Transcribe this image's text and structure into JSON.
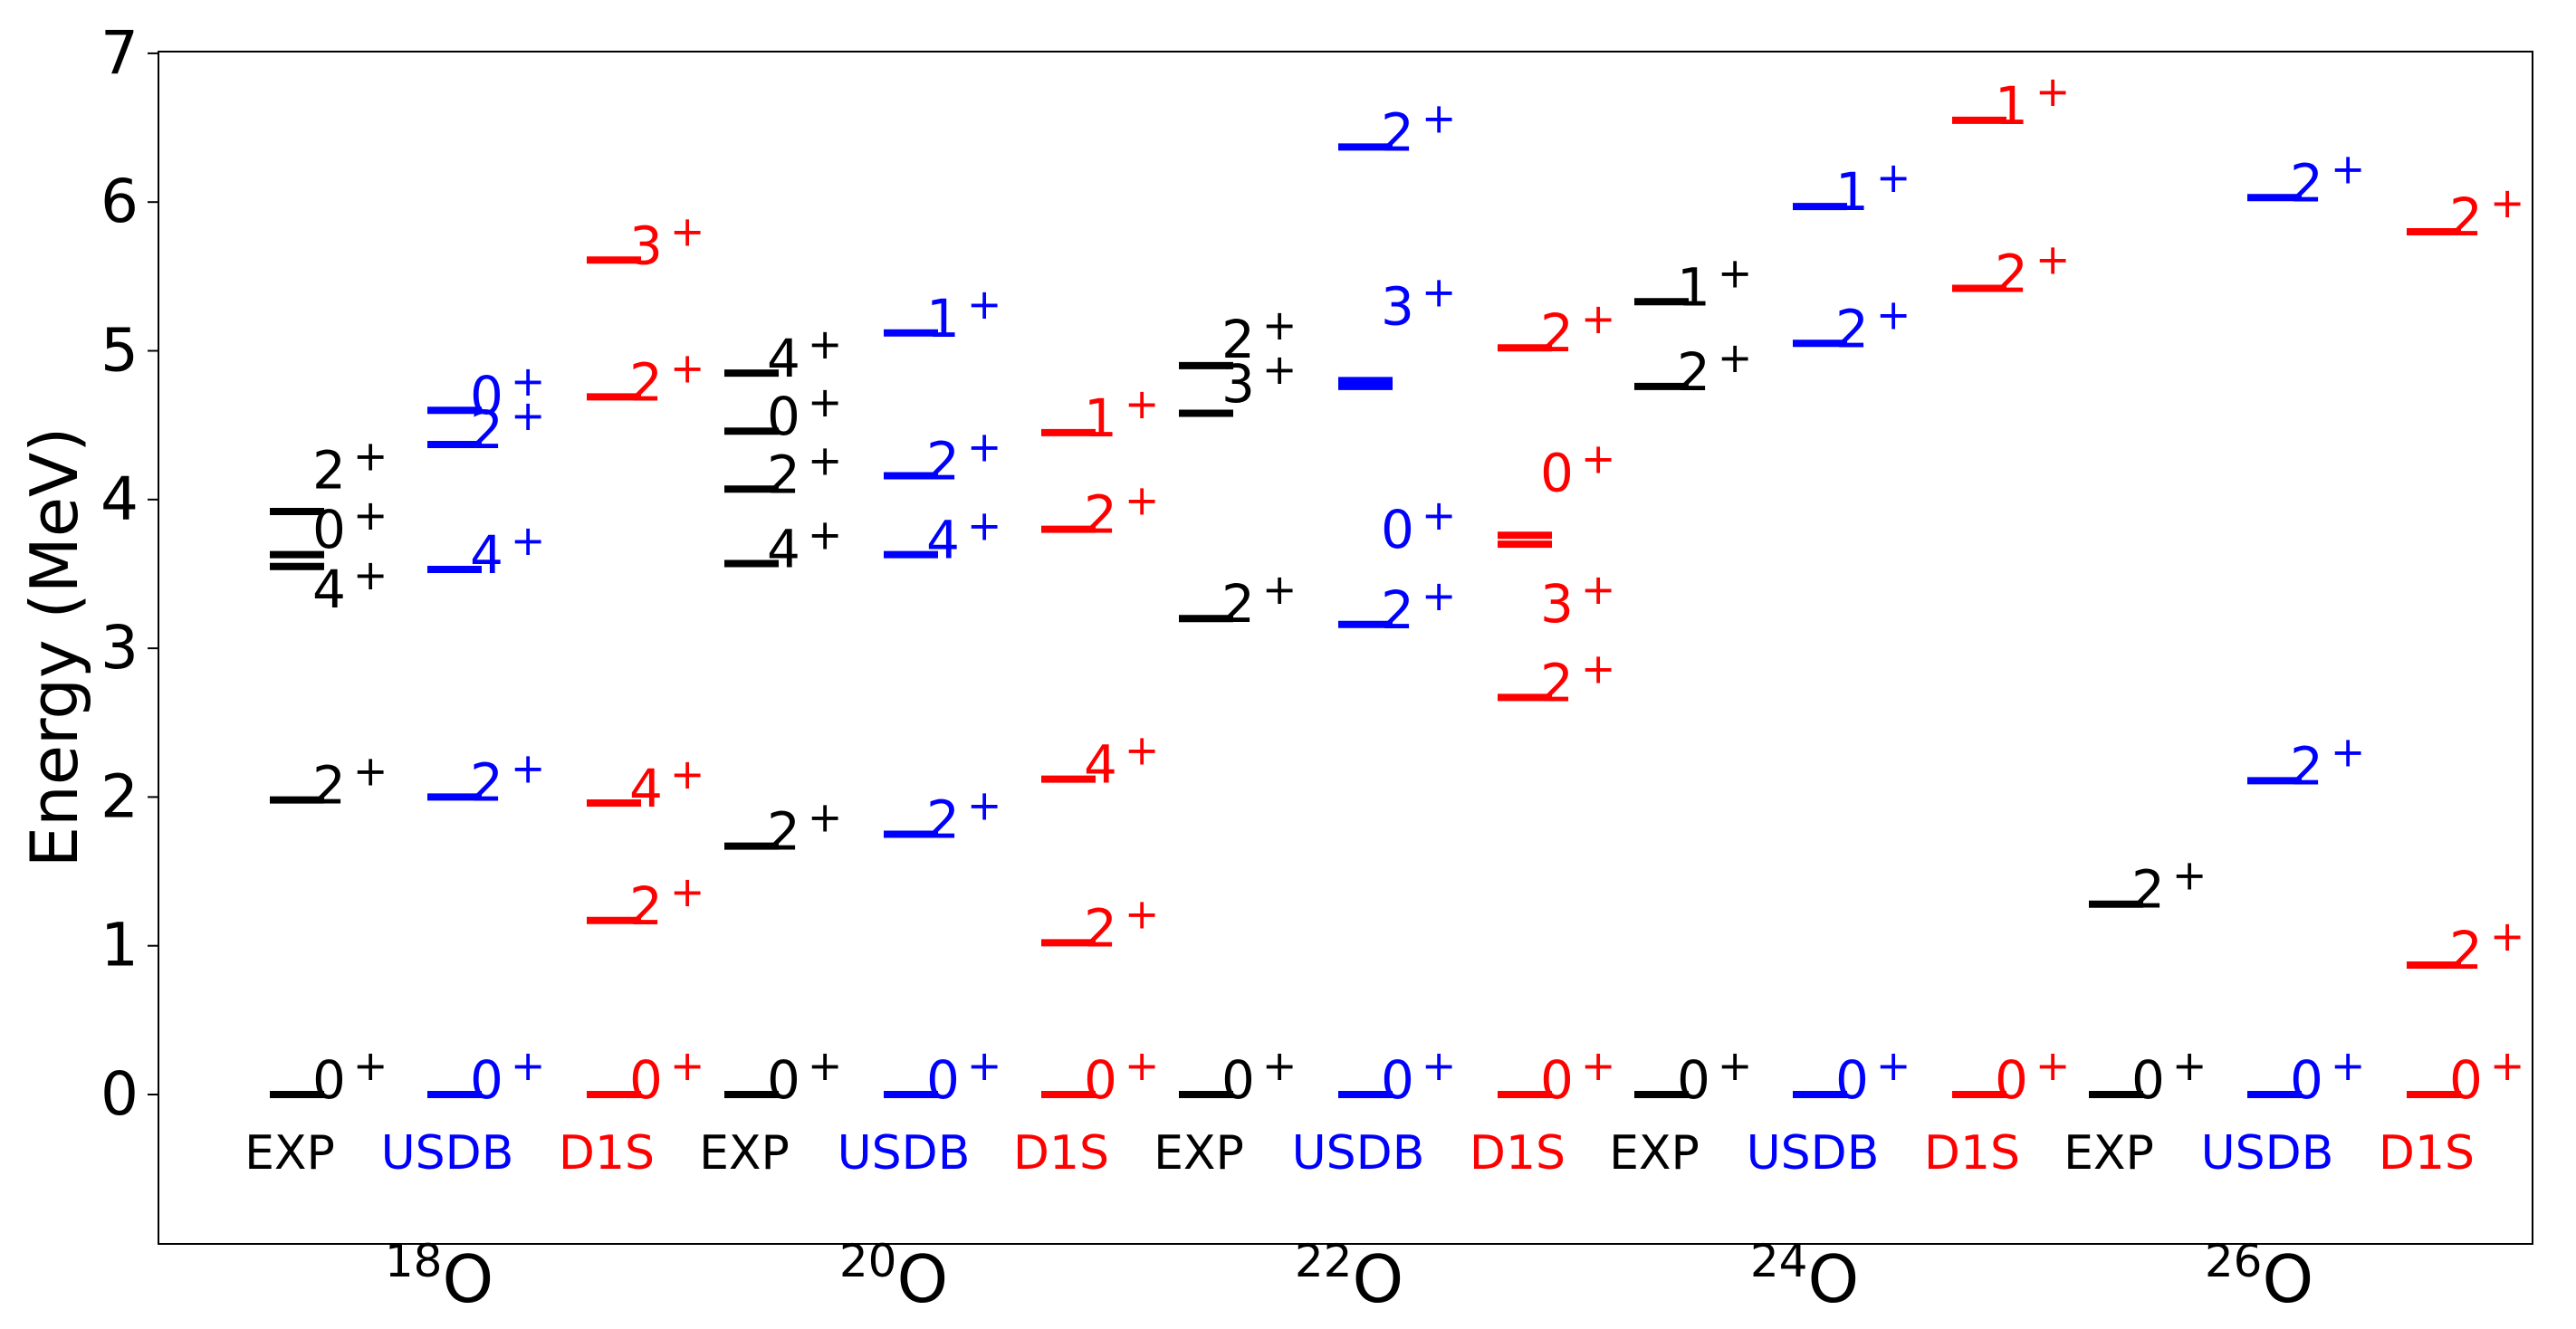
{
  "colors": {
    "EXP": "#000000",
    "USDB": "#0000ff",
    "D1S": "#ff0000",
    "axis": "#000000",
    "background": "#ffffff"
  },
  "chart_data": {
    "type": "level-scheme",
    "ylabel": "Energy (MeV)",
    "xlabel": "",
    "ylim": [
      -1,
      7
    ],
    "yticks": [
      "0",
      "1",
      "2",
      "3",
      "4",
      "5",
      "6",
      "7"
    ],
    "grid": false,
    "nuclei": [
      {
        "mass": "18",
        "element": "O",
        "columns": [
          {
            "label": "EXP",
            "levels": [
              {
                "e": 0.0,
                "spin": "0",
                "parity": "+",
                "label_e": 0.0
              },
              {
                "e": 1.98,
                "spin": "2",
                "parity": "+",
                "label_e": 1.98
              },
              {
                "e": 3.55,
                "spin": "4",
                "parity": "+",
                "label_e": 3.3
              },
              {
                "e": 3.63,
                "spin": "0",
                "parity": "+",
                "label_e": 3.7
              },
              {
                "e": 3.92,
                "spin": "2",
                "parity": "+",
                "label_e": 4.1
              }
            ]
          },
          {
            "label": "USDB",
            "levels": [
              {
                "e": 0.0,
                "spin": "0",
                "parity": "+",
                "label_e": 0.0
              },
              {
                "e": 2.0,
                "spin": "2",
                "parity": "+",
                "label_e": 2.0
              },
              {
                "e": 3.53,
                "spin": "4",
                "parity": "+",
                "label_e": 3.53
              },
              {
                "e": 4.37,
                "spin": "2",
                "parity": "+",
                "label_e": 4.37
              },
              {
                "e": 4.6,
                "spin": "0",
                "parity": "+",
                "label_e": 4.6
              }
            ]
          },
          {
            "label": "D1S",
            "levels": [
              {
                "e": 0.0,
                "spin": "0",
                "parity": "+",
                "label_e": 0.0
              },
              {
                "e": 1.17,
                "spin": "2",
                "parity": "+",
                "label_e": 1.17
              },
              {
                "e": 1.96,
                "spin": "4",
                "parity": "+",
                "label_e": 1.96
              },
              {
                "e": 4.69,
                "spin": "2",
                "parity": "+",
                "label_e": 4.69
              },
              {
                "e": 5.61,
                "spin": "3",
                "parity": "+",
                "label_e": 5.61
              }
            ]
          }
        ]
      },
      {
        "mass": "20",
        "element": "O",
        "columns": [
          {
            "label": "EXP",
            "levels": [
              {
                "e": 0.0,
                "spin": "0",
                "parity": "+",
                "label_e": 0.0
              },
              {
                "e": 1.67,
                "spin": "2",
                "parity": "+",
                "label_e": 1.67
              },
              {
                "e": 3.57,
                "spin": "4",
                "parity": "+",
                "label_e": 3.57
              },
              {
                "e": 4.07,
                "spin": "2",
                "parity": "+",
                "label_e": 4.07
              },
              {
                "e": 4.46,
                "spin": "0",
                "parity": "+",
                "label_e": 4.46
              },
              {
                "e": 4.85,
                "spin": "4",
                "parity": "+",
                "label_e": 4.85
              }
            ]
          },
          {
            "label": "USDB",
            "levels": [
              {
                "e": 0.0,
                "spin": "0",
                "parity": "+",
                "label_e": 0.0
              },
              {
                "e": 1.75,
                "spin": "2",
                "parity": "+",
                "label_e": 1.75
              },
              {
                "e": 3.63,
                "spin": "4",
                "parity": "+",
                "label_e": 3.63
              },
              {
                "e": 4.16,
                "spin": "2",
                "parity": "+",
                "label_e": 4.16
              },
              {
                "e": 5.12,
                "spin": "1",
                "parity": "+",
                "label_e": 5.12
              }
            ]
          },
          {
            "label": "D1S",
            "levels": [
              {
                "e": 0.0,
                "spin": "0",
                "parity": "+",
                "label_e": 0.0
              },
              {
                "e": 1.02,
                "spin": "2",
                "parity": "+",
                "label_e": 1.02
              },
              {
                "e": 2.12,
                "spin": "4",
                "parity": "+",
                "label_e": 2.12
              },
              {
                "e": 3.8,
                "spin": "2",
                "parity": "+",
                "label_e": 3.8
              },
              {
                "e": 4.45,
                "spin": "1",
                "parity": "+",
                "label_e": 4.45
              }
            ]
          }
        ]
      },
      {
        "mass": "22",
        "element": "O",
        "columns": [
          {
            "label": "EXP",
            "levels": [
              {
                "e": 0.0,
                "spin": "0",
                "parity": "+",
                "label_e": 0.0
              },
              {
                "e": 3.2,
                "spin": "2",
                "parity": "+",
                "label_e": 3.2
              },
              {
                "e": 4.58,
                "spin": "3",
                "parity": "+",
                "label_e": 4.68
              },
              {
                "e": 4.9,
                "spin": "2",
                "parity": "+",
                "label_e": 4.98
              }
            ]
          },
          {
            "label": "USDB",
            "levels": [
              {
                "e": 0.0,
                "spin": "0",
                "parity": "+",
                "label_e": 0.0
              },
              {
                "e": 3.16,
                "spin": "2",
                "parity": "+",
                "label_e": 3.16
              },
              {
                "e": 3.7,
                "spin": "0",
                "parity": "+",
                "label_e": 3.7,
                "label_only": true
              },
              {
                "e": 4.76,
                "spin": "3",
                "parity": "+",
                "label_e": 5.2
              },
              {
                "e": 4.8,
                "spin": "",
                "parity": "",
                "label_e": 4.8
              },
              {
                "e": 6.37,
                "spin": "2",
                "parity": "+",
                "label_e": 6.37
              }
            ]
          },
          {
            "label": "D1S",
            "levels": [
              {
                "e": 0.0,
                "spin": "0",
                "parity": "+",
                "label_e": 0.0
              },
              {
                "e": 2.67,
                "spin": "2",
                "parity": "+",
                "label_e": 2.67
              },
              {
                "e": 3.7,
                "spin": "3",
                "parity": "+",
                "label_e": 3.2
              },
              {
                "e": 3.76,
                "spin": "0",
                "parity": "+",
                "label_e": 4.08
              },
              {
                "e": 5.02,
                "spin": "2",
                "parity": "+",
                "label_e": 5.02
              }
            ]
          }
        ]
      },
      {
        "mass": "24",
        "element": "O",
        "columns": [
          {
            "label": "EXP",
            "levels": [
              {
                "e": 0.0,
                "spin": "0",
                "parity": "+",
                "label_e": 0.0
              },
              {
                "e": 4.76,
                "spin": "2",
                "parity": "+",
                "label_e": 4.76
              },
              {
                "e": 5.33,
                "spin": "1",
                "parity": "+",
                "label_e": 5.33
              }
            ]
          },
          {
            "label": "USDB",
            "levels": [
              {
                "e": 0.0,
                "spin": "0",
                "parity": "+",
                "label_e": 0.0
              },
              {
                "e": 5.05,
                "spin": "2",
                "parity": "+",
                "label_e": 5.05
              },
              {
                "e": 5.97,
                "spin": "1",
                "parity": "+",
                "label_e": 5.97
              }
            ]
          },
          {
            "label": "D1S",
            "levels": [
              {
                "e": 0.0,
                "spin": "0",
                "parity": "+",
                "label_e": 0.0
              },
              {
                "e": 5.42,
                "spin": "2",
                "parity": "+",
                "label_e": 5.42
              },
              {
                "e": 6.55,
                "spin": "1",
                "parity": "+",
                "label_e": 6.55
              }
            ]
          }
        ]
      },
      {
        "mass": "26",
        "element": "O",
        "columns": [
          {
            "label": "EXP",
            "levels": [
              {
                "e": 0.0,
                "spin": "0",
                "parity": "+",
                "label_e": 0.0
              },
              {
                "e": 1.28,
                "spin": "2",
                "parity": "+",
                "label_e": 1.28
              }
            ]
          },
          {
            "label": "USDB",
            "levels": [
              {
                "e": 0.0,
                "spin": "0",
                "parity": "+",
                "label_e": 0.0
              },
              {
                "e": 2.11,
                "spin": "2",
                "parity": "+",
                "label_e": 2.11
              },
              {
                "e": 6.03,
                "spin": "2",
                "parity": "+",
                "label_e": 6.03
              }
            ]
          },
          {
            "label": "D1S",
            "levels": [
              {
                "e": 0.0,
                "spin": "0",
                "parity": "+",
                "label_e": 0.0
              },
              {
                "e": 0.87,
                "spin": "2",
                "parity": "+",
                "label_e": 0.87
              },
              {
                "e": 5.8,
                "spin": "2",
                "parity": "+",
                "label_e": 5.8
              }
            ]
          }
        ]
      }
    ]
  }
}
